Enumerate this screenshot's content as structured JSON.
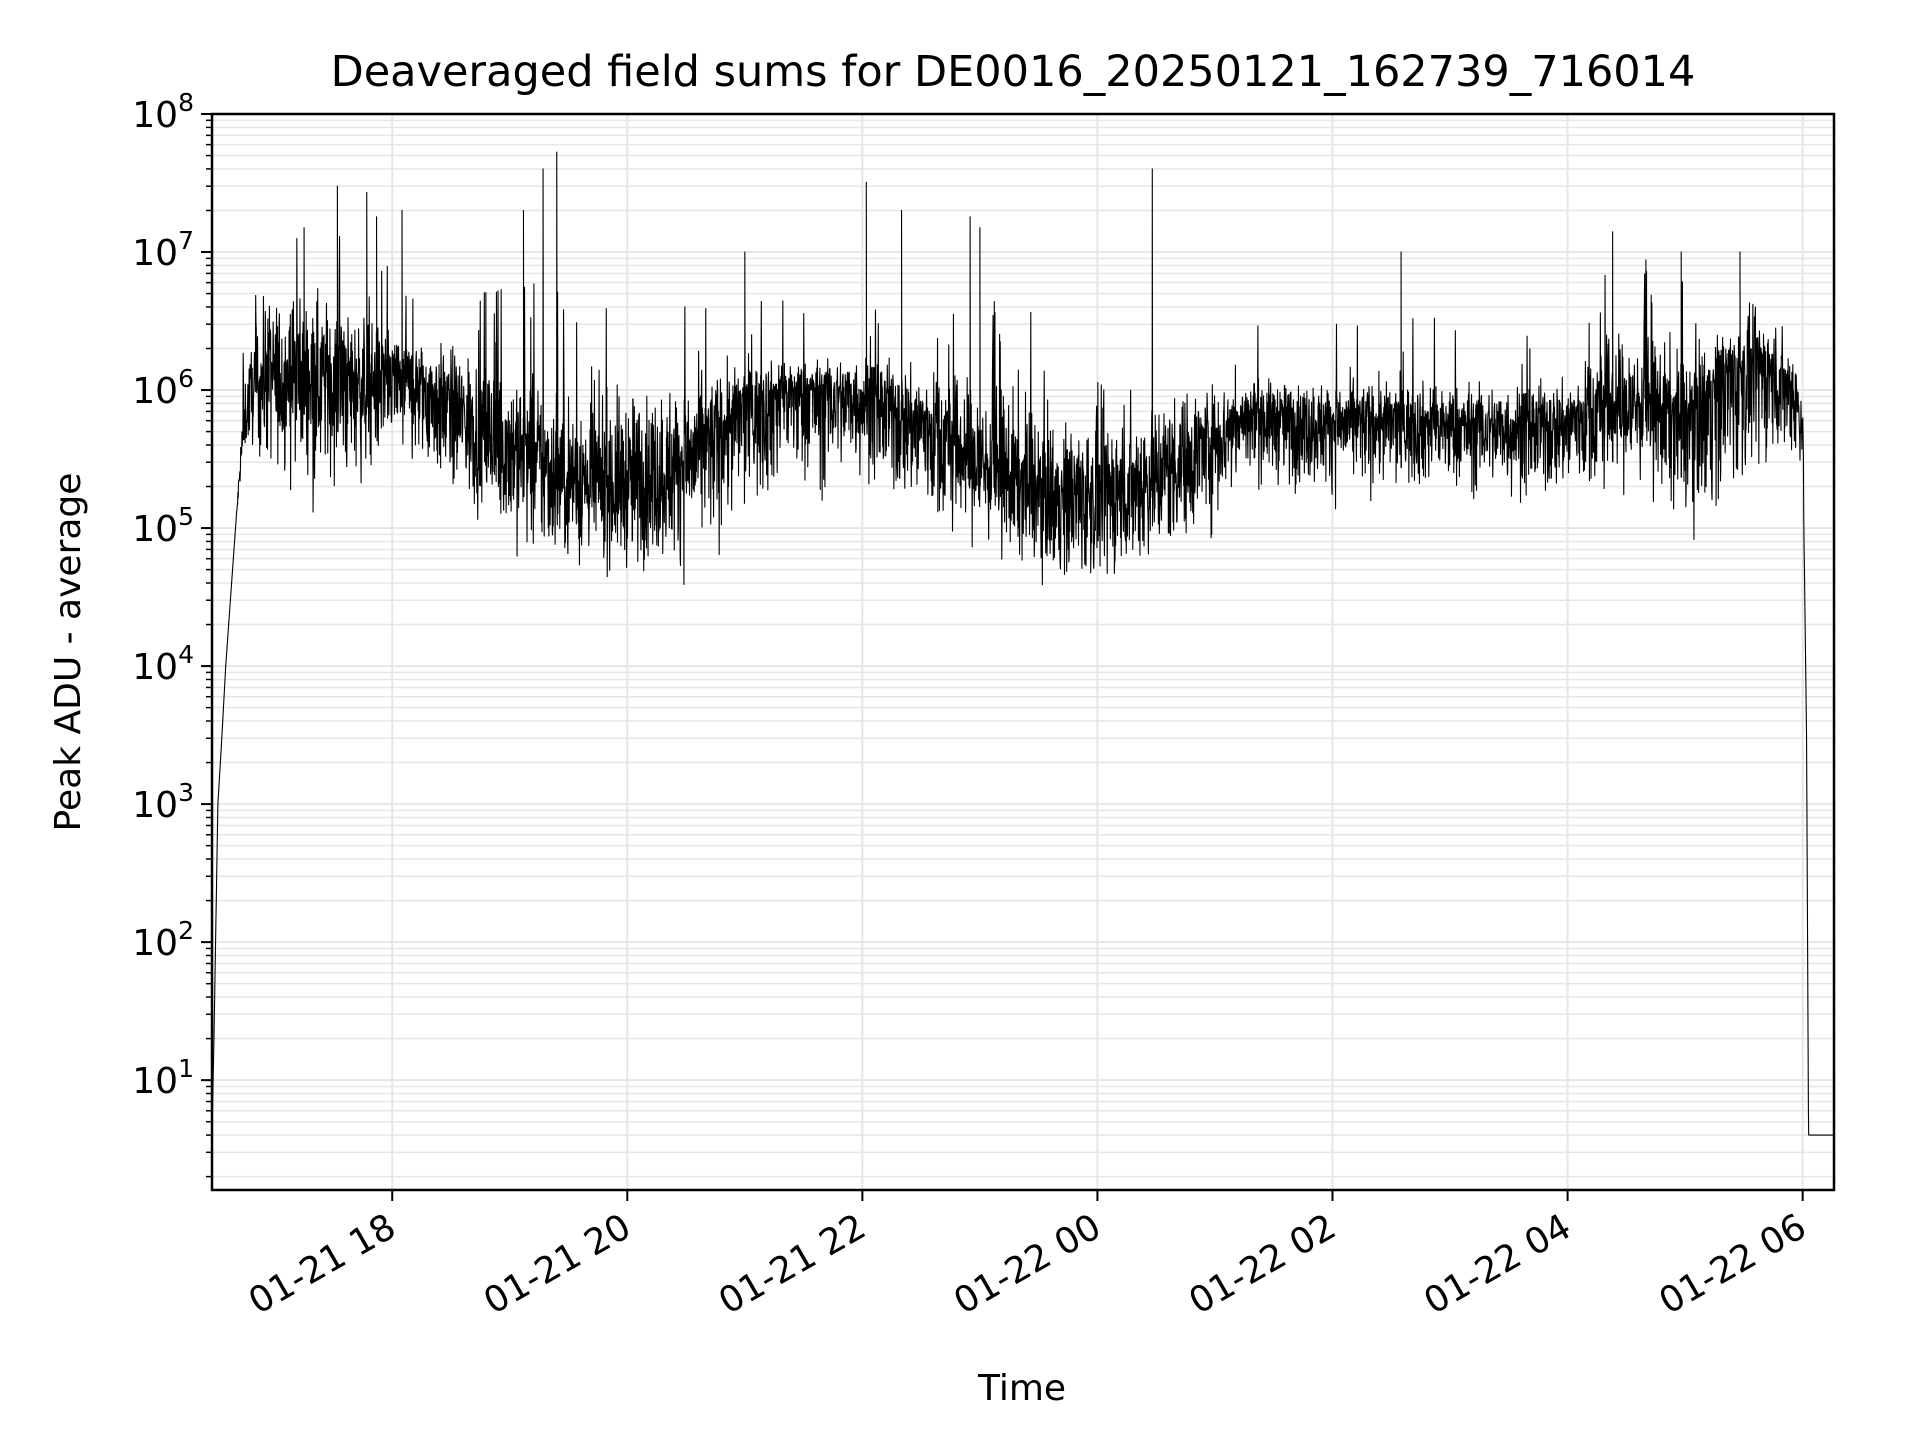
{
  "chart_data": {
    "type": "line",
    "title": "Deaveraged field sums for DE0016_20250121_162739_716014",
    "xlabel": "Time",
    "ylabel": "Peak ADU - average",
    "yscale": "log",
    "ylim": [
      1.6,
      100000000
    ],
    "xlim": [
      "2025-01-21T16:28:00",
      "2025-01-22T06:16:00"
    ],
    "grid": true,
    "grid_minor": true,
    "line_color": "#000000",
    "grid_color": "#e6e6e6",
    "x_ticks": [
      {
        "value": "2025-01-21T18:00:00",
        "label": "01-21 18"
      },
      {
        "value": "2025-01-21T20:00:00",
        "label": "01-21 20"
      },
      {
        "value": "2025-01-21T22:00:00",
        "label": "01-21 22"
      },
      {
        "value": "2025-01-22T00:00:00",
        "label": "01-22 00"
      },
      {
        "value": "2025-01-22T02:00:00",
        "label": "01-22 02"
      },
      {
        "value": "2025-01-22T04:00:00",
        "label": "01-22 04"
      },
      {
        "value": "2025-01-22T06:00:00",
        "label": "01-22 06"
      }
    ],
    "y_ticks": [
      {
        "value": 10,
        "base": "10",
        "exp": "1"
      },
      {
        "value": 100,
        "base": "10",
        "exp": "2"
      },
      {
        "value": 1000,
        "base": "10",
        "exp": "3"
      },
      {
        "value": 10000,
        "base": "10",
        "exp": "4"
      },
      {
        "value": 100000,
        "base": "10",
        "exp": "5"
      },
      {
        "value": 1000000,
        "base": "10",
        "exp": "6"
      },
      {
        "value": 10000000,
        "base": "10",
        "exp": "7"
      },
      {
        "value": 100000000,
        "base": "10",
        "exp": "8"
      }
    ],
    "series": [
      {
        "x": [
          "2025-01-21T16:28:00",
          "2025-01-21T16:29:00",
          "2025-01-21T16:31:00",
          "2025-01-21T16:33:00",
          "2025-01-21T16:35:00",
          "2025-01-21T16:40:00",
          "2025-01-21T16:44:00",
          "2025-01-21T16:48:00",
          "2025-01-21T16:52:00",
          "2025-01-21T16:56:00",
          "2025-01-21T17:00:00",
          "2025-01-21T17:10:00",
          "2025-01-21T17:25:00",
          "2025-01-21T17:40:00",
          "2025-01-21T17:55:00",
          "2025-01-21T18:15:00",
          "2025-01-21T18:40:00",
          "2025-01-21T19:00:00",
          "2025-01-21T19:20:00",
          "2025-01-21T19:40:00",
          "2025-01-21T20:00:00",
          "2025-01-21T20:20:00",
          "2025-01-21T20:40:00",
          "2025-01-21T21:00:00",
          "2025-01-21T21:20:00",
          "2025-01-21T21:40:00",
          "2025-01-21T22:00:00",
          "2025-01-21T22:20:00",
          "2025-01-21T22:40:00",
          "2025-01-21T23:00:00",
          "2025-01-21T23:20:00",
          "2025-01-21T23:40:00",
          "2025-01-22T00:00:00",
          "2025-01-22T00:20:00",
          "2025-01-22T00:40:00",
          "2025-01-22T01:00:00",
          "2025-01-22T01:20:00",
          "2025-01-22T01:40:00",
          "2025-01-22T02:00:00",
          "2025-01-22T02:20:00",
          "2025-01-22T02:40:00",
          "2025-01-22T03:00:00",
          "2025-01-22T03:20:00",
          "2025-01-22T03:40:00",
          "2025-01-22T04:00:00",
          "2025-01-22T04:20:00",
          "2025-01-22T04:40:00",
          "2025-01-22T05:00:00",
          "2025-01-22T05:20:00",
          "2025-01-22T05:40:00",
          "2025-01-22T05:55:00",
          "2025-01-22T06:00:00",
          "2025-01-22T06:01:00",
          "2025-01-22T06:02:00",
          "2025-01-22T06:03:00",
          "2025-01-22T06:16:00"
        ],
        "y": [
          4,
          20,
          1000,
          3000,
          10000,
          100000,
          500000,
          1000000,
          1000000,
          1500000,
          1200000,
          1500000,
          1300000,
          1200000,
          1300000,
          1100000,
          600000,
          400000,
          250000,
          200000,
          200000,
          250000,
          400000,
          800000,
          1000000,
          1000000,
          900000,
          700000,
          500000,
          300000,
          200000,
          150000,
          150000,
          200000,
          300000,
          500000,
          700000,
          600000,
          600000,
          600000,
          600000,
          550000,
          550000,
          550000,
          600000,
          800000,
          800000,
          600000,
          1200000,
          1500000,
          1000000,
          600000,
          40000,
          3000,
          4,
          4
        ],
        "upper": [
          4,
          20,
          1000,
          3000,
          10000,
          100000,
          1500000,
          3000000,
          6000000,
          8000000,
          8000000,
          8000000,
          8000000,
          5000000,
          4000000,
          3000000,
          3000000,
          3000000,
          2500000,
          2000000,
          2000000,
          2000000,
          2000000,
          2000000,
          2000000,
          2000000,
          2500000,
          2000000,
          2000000,
          2000000,
          2000000,
          1500000,
          1500000,
          1500000,
          1500000,
          1500000,
          1500000,
          1500000,
          1500000,
          1500000,
          1500000,
          1500000,
          1500000,
          1500000,
          1500000,
          4000000,
          4000000,
          3000000,
          5000000,
          5000000,
          3000000,
          2000000,
          40000,
          3000,
          4,
          4
        ],
        "lower": [
          4,
          20,
          1000,
          3000,
          10000,
          100000,
          300000,
          300000,
          200000,
          150000,
          150000,
          120000,
          100000,
          100000,
          150000,
          150000,
          80000,
          40000,
          35000,
          35000,
          30000,
          30000,
          35000,
          60000,
          100000,
          100000,
          150000,
          80000,
          50000,
          40000,
          35000,
          30000,
          25000,
          30000,
          40000,
          60000,
          150000,
          120000,
          120000,
          120000,
          120000,
          120000,
          120000,
          100000,
          100000,
          100000,
          100000,
          60000,
          70000,
          150000,
          200000,
          200000,
          40000,
          3000,
          4,
          4
        ],
        "spikes": [
          {
            "x": "2025-01-21T17:15:00",
            "y": 15000000
          },
          {
            "x": "2025-01-21T17:32:00",
            "y": 30000000
          },
          {
            "x": "2025-01-21T17:47:00",
            "y": 27000000
          },
          {
            "x": "2025-01-21T17:52:00",
            "y": 18000000
          },
          {
            "x": "2025-01-21T18:05:00",
            "y": 20000000
          },
          {
            "x": "2025-01-21T19:07:00",
            "y": 20000000
          },
          {
            "x": "2025-01-21T19:17:00",
            "y": 40000000
          },
          {
            "x": "2025-01-21T19:24:00",
            "y": 53000000
          },
          {
            "x": "2025-01-21T21:00:00",
            "y": 10000000
          },
          {
            "x": "2025-01-21T22:02:00",
            "y": 32000000
          },
          {
            "x": "2025-01-21T22:20:00",
            "y": 20000000
          },
          {
            "x": "2025-01-21T22:55:00",
            "y": 18000000
          },
          {
            "x": "2025-01-21T23:00:00",
            "y": 15000000
          },
          {
            "x": "2025-01-22T00:28:00",
            "y": 40000000
          },
          {
            "x": "2025-01-22T02:35:00",
            "y": 10000000
          },
          {
            "x": "2025-01-22T04:23:00",
            "y": 14000000
          },
          {
            "x": "2025-01-22T04:58:00",
            "y": 10000000
          },
          {
            "x": "2025-01-22T05:28:00",
            "y": 10000000
          }
        ]
      }
    ]
  }
}
